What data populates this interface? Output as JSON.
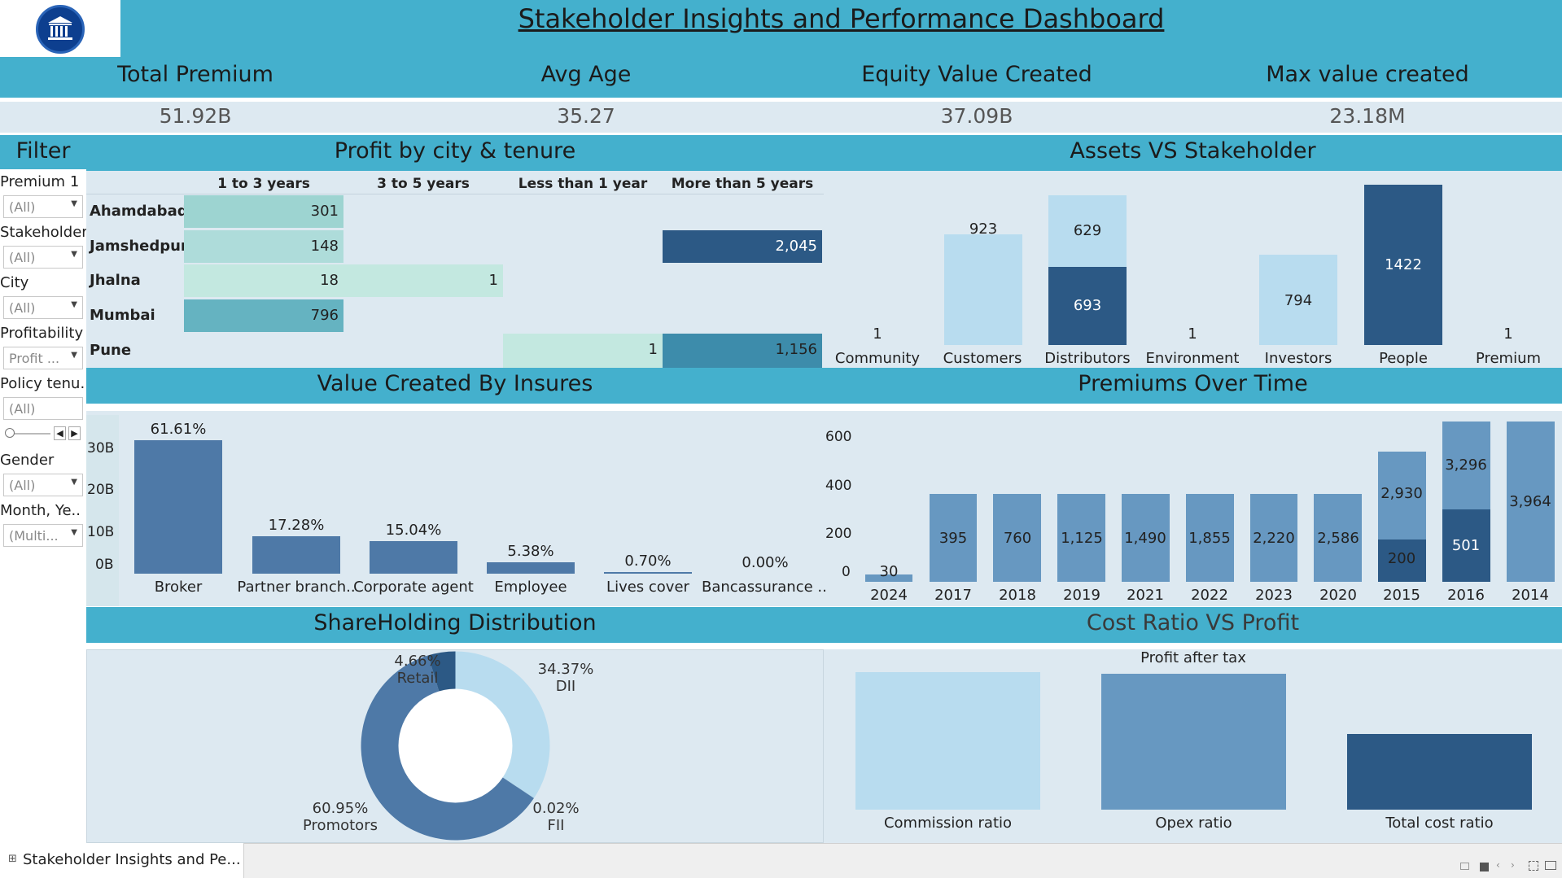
{
  "dashboard": {
    "title": "Stakeholder Insights and Performance Dashboard"
  },
  "kpis": [
    {
      "label": "Total Premium",
      "value": "51.92B"
    },
    {
      "label": "Avg Age",
      "value": "35.27"
    },
    {
      "label": "Equity Value Created",
      "value": "37.09B"
    },
    {
      "label": "Max value created",
      "value": "23.18M"
    }
  ],
  "filter": {
    "title": "Filter",
    "items": [
      {
        "label": "Premium 1",
        "value": "(All)"
      },
      {
        "label": "Stakeholder",
        "value": "(All)"
      },
      {
        "label": "City",
        "value": "(All)"
      },
      {
        "label": "Profitability",
        "value": "Profit ..."
      },
      {
        "label": "Policy tenu..",
        "value": "(All)"
      },
      {
        "label": "Gender",
        "value": "(All)"
      },
      {
        "label": "Month, Ye..",
        "value": "(Multi..."
      }
    ]
  },
  "sections": {
    "profit": "Profit by city & tenure",
    "assets": "Assets VS Stakeholder",
    "value": "Value Created By Insures",
    "premiums": "Premiums Over Time",
    "share": "ShareHolding Distribution",
    "cost": "Cost Ratio VS Profit"
  },
  "colors": {
    "band": "#44b0cd",
    "panel": "#dde9f1",
    "dark_blue": "#2c5985",
    "mid_blue": "#6798c1",
    "steel_blue": "#4e79a7",
    "light_blue": "#b8dcef"
  },
  "chart_data": [
    {
      "id": "profit",
      "type": "table",
      "columns": [
        "1 to 3 years",
        "3 to 5 years",
        "Less than 1 year",
        "More than 5 years"
      ],
      "rows": [
        {
          "city": "Ahamdabad",
          "values": [
            "301",
            "",
            "",
            ""
          ]
        },
        {
          "city": "Jamshedpur",
          "values": [
            "148",
            "",
            "",
            "2,045"
          ]
        },
        {
          "city": "Jhalna",
          "values": [
            "18",
            "1",
            "",
            ""
          ]
        },
        {
          "city": "Mumbai",
          "values": [
            "796",
            "",
            "",
            ""
          ]
        },
        {
          "city": "Pune",
          "values": [
            "",
            "",
            "1",
            "1,156"
          ]
        }
      ]
    },
    {
      "id": "assets",
      "type": "bar",
      "categories": [
        "Community",
        "Customers",
        "Distributors",
        "Environment",
        "Investors",
        "People",
        "Premium"
      ],
      "series": [
        {
          "values": [
            1,
            923,
            693,
            1,
            794,
            1422,
            1
          ]
        },
        {
          "values": [
            0,
            0,
            629,
            0,
            0,
            0,
            0
          ]
        }
      ]
    },
    {
      "id": "value",
      "type": "bar",
      "categories": [
        "Broker",
        "Partner branch..",
        "Corporate agent",
        "Employee",
        "Lives cover",
        "Bancassurance .."
      ],
      "values": [
        61.61,
        17.28,
        15.04,
        5.38,
        0.7,
        0.0
      ],
      "labels": [
        "61.61%",
        "17.28%",
        "15.04%",
        "5.38%",
        "0.70%",
        "0.00%"
      ],
      "yticks": [
        "30B",
        "20B",
        "10B",
        "0B"
      ]
    },
    {
      "id": "premiums",
      "type": "bar",
      "categories": [
        "2024",
        "2017",
        "2018",
        "2019",
        "2021",
        "2022",
        "2023",
        "2020",
        "2015",
        "2016",
        "2014"
      ],
      "yticks": [
        "600",
        "400",
        "200",
        "0"
      ],
      "ylim": [
        0,
        600
      ],
      "stacks": [
        {
          "segments": [
            {
              "label": "30"
            }
          ]
        },
        {
          "segments": [
            {
              "label": "395"
            }
          ]
        },
        {
          "segments": [
            {
              "label": "760"
            }
          ]
        },
        {
          "segments": [
            {
              "label": "1,125"
            }
          ]
        },
        {
          "segments": [
            {
              "label": "1,490"
            }
          ]
        },
        {
          "segments": [
            {
              "label": "1,855"
            }
          ]
        },
        {
          "segments": [
            {
              "label": "2,220"
            }
          ]
        },
        {
          "segments": [
            {
              "label": "2,586"
            }
          ]
        },
        {
          "segments": [
            {
              "label": "200"
            },
            {
              "label": "2,930"
            }
          ]
        },
        {
          "segments": [
            {
              "label": "501"
            },
            {
              "label": "3,296"
            }
          ]
        },
        {
          "segments": [
            {
              "label": "3,964"
            }
          ]
        }
      ]
    },
    {
      "id": "share",
      "type": "pie",
      "slices": [
        {
          "name": "DII",
          "value": 34.37,
          "label": "34.37%"
        },
        {
          "name": "FII",
          "value": 0.02,
          "label": "0.02%"
        },
        {
          "name": "Promotors",
          "value": 60.95,
          "label": "60.95%"
        },
        {
          "name": "Retail",
          "value": 4.66,
          "label": "4.66%"
        }
      ]
    },
    {
      "id": "cost",
      "type": "bar",
      "title": "Profit after tax",
      "categories": [
        "Commission ratio",
        "Opex ratio",
        "Total cost ratio"
      ],
      "values": [
        1.0,
        0.99,
        0.57
      ]
    }
  ],
  "footer": {
    "tab_label": "Stakeholder Insights and Pe..."
  }
}
